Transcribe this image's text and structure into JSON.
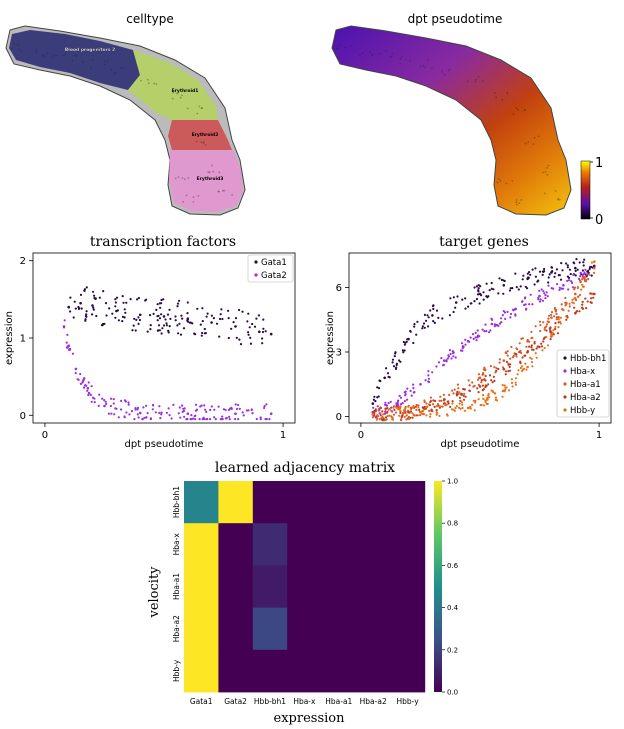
{
  "chart_data": [
    {
      "type": "scatter",
      "title": "celltype",
      "variant": "embedding",
      "cluster_labels": [
        "Blood progenitors 2",
        "Erythroid1",
        "Erythroid2",
        "Erythroid3"
      ],
      "cluster_colors": [
        "#3b3d7a",
        "#b5cf6b",
        "#cc5a5a",
        "#df99cf"
      ]
    },
    {
      "type": "scatter",
      "title": "dpt pseudotime",
      "variant": "embedding",
      "colorbar": {
        "ticks": [
          {
            "label": "0",
            "value": 0
          },
          {
            "label": "1",
            "value": 1
          }
        ],
        "cmap": "gnuplot"
      }
    },
    {
      "type": "scatter",
      "title": "transcription factors",
      "xlabel": "dpt pseudotime",
      "ylabel": "expression",
      "xlim": [
        -0.05,
        1.05
      ],
      "ylim": [
        -0.1,
        2.1
      ],
      "xticks": [
        {
          "label": "0",
          "value": 0
        },
        {
          "label": "1",
          "value": 1
        }
      ],
      "yticks": [
        {
          "label": "0",
          "value": 0
        },
        {
          "label": "1",
          "value": 1
        },
        {
          "label": "2",
          "value": 2
        }
      ],
      "legend": "top-right",
      "series": [
        {
          "name": "Gata1",
          "color": "#2b0a49",
          "x": [
            0.1,
            0.15,
            0.2,
            0.3,
            0.4,
            0.5,
            0.6,
            0.7,
            0.8,
            0.9,
            0.95
          ],
          "y": [
            1.4,
            1.45,
            1.42,
            1.35,
            1.3,
            1.28,
            1.25,
            1.2,
            1.15,
            1.08,
            1.05
          ]
        },
        {
          "name": "Gata2",
          "color": "#9b2fe0",
          "x": [
            0.08,
            0.1,
            0.13,
            0.18,
            0.25,
            0.4,
            0.6,
            0.8,
            0.95
          ],
          "y": [
            1.15,
            0.9,
            0.6,
            0.35,
            0.12,
            0.03,
            0.02,
            0.02,
            0.02
          ]
        }
      ]
    },
    {
      "type": "scatter",
      "title": "target genes",
      "xlabel": "dpt pseudotime",
      "ylabel": "expression",
      "xlim": [
        -0.05,
        1.05
      ],
      "ylim": [
        -0.3,
        7.6
      ],
      "xticks": [
        {
          "label": "0",
          "value": 0
        },
        {
          "label": "1",
          "value": 1
        }
      ],
      "yticks": [
        {
          "label": "0",
          "value": 0
        },
        {
          "label": "3",
          "value": 3
        },
        {
          "label": "6",
          "value": 6
        }
      ],
      "legend": "bottom-right",
      "series": [
        {
          "name": "Hbb-bh1",
          "color": "#2b0a49",
          "x": [
            0.05,
            0.1,
            0.2,
            0.3,
            0.4,
            0.5,
            0.6,
            0.7,
            0.8,
            0.9,
            0.98
          ],
          "y": [
            0.6,
            1.8,
            3.6,
            4.7,
            5.3,
            5.7,
            6.1,
            6.4,
            6.7,
            6.9,
            7.0
          ]
        },
        {
          "name": "Hba-x",
          "color": "#9b2fe0",
          "x": [
            0.05,
            0.15,
            0.25,
            0.35,
            0.45,
            0.55,
            0.65,
            0.75,
            0.85,
            0.95
          ],
          "y": [
            0.2,
            0.6,
            1.5,
            2.6,
            3.5,
            4.3,
            5.0,
            5.6,
            6.1,
            6.6
          ]
        },
        {
          "name": "Hba-a1",
          "color": "#d95a2a",
          "x": [
            0.05,
            0.2,
            0.35,
            0.5,
            0.6,
            0.7,
            0.8,
            0.9,
            0.98
          ],
          "y": [
            0.1,
            0.2,
            0.8,
            1.8,
            2.6,
            3.5,
            4.6,
            5.7,
            6.9
          ]
        },
        {
          "name": "Hba-a2",
          "color": "#c0391b",
          "x": [
            0.05,
            0.2,
            0.35,
            0.5,
            0.6,
            0.7,
            0.8,
            0.9,
            0.98
          ],
          "y": [
            0.1,
            0.2,
            0.6,
            1.4,
            2.2,
            3.0,
            3.9,
            4.8,
            5.7
          ]
        },
        {
          "name": "Hbb-y",
          "color": "#e8711c",
          "x": [
            0.05,
            0.25,
            0.45,
            0.6,
            0.7,
            0.8,
            0.9,
            0.98
          ],
          "y": [
            0.1,
            0.2,
            0.4,
            1.2,
            2.3,
            3.8,
            5.5,
            7.2
          ]
        }
      ]
    },
    {
      "type": "heatmap",
      "title": "learned adjacency matrix",
      "xlabel": "expression",
      "ylabel": "velocity",
      "x_labels": [
        "Gata1",
        "Gata2",
        "Hbb-bh1",
        "Hba-x",
        "Hba-a1",
        "Hba-a2",
        "Hbb-y"
      ],
      "y_labels": [
        "Hbb-bh1",
        "Hba-x",
        "Hba-a1",
        "Hba-a2",
        "Hbb-y"
      ],
      "row_values": [
        [
          0.45,
          1.0,
          0.0,
          0.0,
          0.0,
          0.0,
          0.0
        ],
        [
          1.0,
          0.0,
          0.13,
          0.0,
          0.0,
          0.0,
          0.0
        ],
        [
          1.0,
          0.0,
          0.08,
          0.0,
          0.0,
          0.0,
          0.0
        ],
        [
          1.0,
          0.0,
          0.22,
          0.0,
          0.0,
          0.0,
          0.0
        ],
        [
          1.0,
          0.0,
          0.0,
          0.0,
          0.0,
          0.0,
          0.0
        ]
      ],
      "vlim": [
        0.0,
        1.0
      ],
      "colorbar_ticks": [
        {
          "label": "0.0",
          "value": 0.0
        },
        {
          "label": "0.2",
          "value": 0.2
        },
        {
          "label": "0.4",
          "value": 0.4
        },
        {
          "label": "0.6",
          "value": 0.6
        },
        {
          "label": "0.8",
          "value": 0.8
        },
        {
          "label": "1.0",
          "value": 1.0
        }
      ]
    }
  ]
}
